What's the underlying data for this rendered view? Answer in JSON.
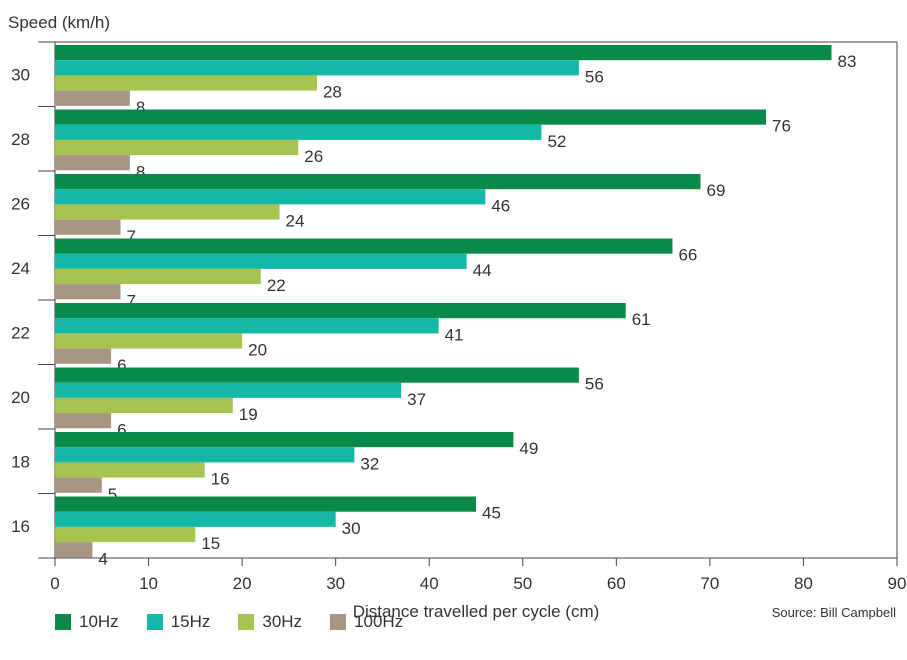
{
  "chart_data": {
    "type": "bar",
    "orientation": "horizontal",
    "ylabel": "Speed (km/h)",
    "xlabel": "Distance travelled per cycle (cm)",
    "source": "Source: Bill Campbell",
    "categories": [
      "30",
      "28",
      "26",
      "24",
      "22",
      "20",
      "18",
      "16"
    ],
    "xlim": [
      0,
      90
    ],
    "xticks": [
      0,
      10,
      20,
      30,
      40,
      50,
      60,
      70,
      80,
      90
    ],
    "grid": false,
    "legend_position": "bottom-left",
    "series": [
      {
        "name": "10Hz",
        "color": "#0a8a4a",
        "values": [
          83,
          76,
          69,
          66,
          61,
          56,
          49,
          45
        ]
      },
      {
        "name": "15Hz",
        "color": "#14b8a6",
        "values": [
          56,
          52,
          46,
          44,
          41,
          37,
          32,
          30
        ]
      },
      {
        "name": "30Hz",
        "color": "#a6c44f",
        "values": [
          28,
          26,
          24,
          22,
          20,
          19,
          16,
          15
        ]
      },
      {
        "name": "100Hz",
        "color": "#a89683",
        "values": [
          8,
          8,
          7,
          7,
          6,
          6,
          5,
          4
        ]
      }
    ]
  }
}
